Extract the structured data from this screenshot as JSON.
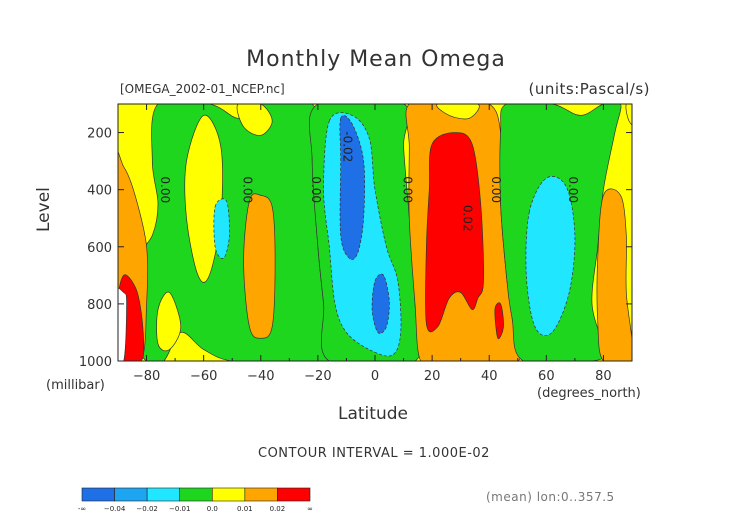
{
  "header": {
    "title": "Monthly Mean Omega",
    "file_label": "[OMEGA_2002-01_NCEP.nc]",
    "units_label": "(units:Pascal/s)"
  },
  "axes": {
    "ylabel": "Level",
    "yunit": "(millibar)",
    "xlabel": "Latitude",
    "xunit": "(degrees_north)"
  },
  "footer": {
    "contour_interval": "CONTOUR INTERVAL = 1.000E-02",
    "mean_note": "(mean) lon:0..357.5"
  },
  "chart_data": {
    "type": "heatmap",
    "title": "Monthly Mean Omega",
    "xlabel": "Latitude",
    "ylabel": "Level",
    "x_unit": "(degrees_north)",
    "y_unit": "(millibar)",
    "xlim": [
      -90,
      90
    ],
    "ylim": [
      1000,
      100
    ],
    "y_inverted": true,
    "x_ticks": [
      -80,
      -60,
      -40,
      -20,
      0,
      20,
      40,
      60,
      80
    ],
    "x_tick_labels": [
      "−80",
      "−60",
      "−40",
      "−20",
      "0",
      "20",
      "40",
      "60",
      "80"
    ],
    "y_ticks": [
      200,
      400,
      600,
      800,
      1000
    ],
    "y_tick_labels": [
      "200",
      "400",
      "600",
      "800",
      "1000"
    ],
    "contour_interval": 0.01,
    "contour_labels": [
      {
        "text": "0.00",
        "lat": -75,
        "level": 400
      },
      {
        "text": "0.00",
        "lat": -46,
        "level": 400
      },
      {
        "text": "0.00",
        "lat": -22,
        "level": 400
      },
      {
        "text": "-0.02",
        "lat": -11,
        "level": 250
      },
      {
        "text": "0.00",
        "lat": 10,
        "level": 400
      },
      {
        "text": "0.02",
        "lat": 31,
        "level": 500
      },
      {
        "text": "0.00",
        "lat": 41,
        "level": 400
      },
      {
        "text": "0.00",
        "lat": 68,
        "level": 400
      }
    ],
    "colorbar": {
      "colors": [
        "#1f6fe6",
        "#1ea5f2",
        "#21e6ff",
        "#1fd61f",
        "#ffff00",
        "#ffa500",
        "#ff0000"
      ],
      "labels": [
        "-∞",
        "−0.04",
        "−0.02",
        "−0.01",
        "0.0",
        "0.01",
        "0.02",
        "∞"
      ]
    },
    "regions": [
      {
        "value_range": "0.00..0.01",
        "color": "yellow",
        "lat": [
          -90,
          90
        ],
        "level": [
          100,
          1000
        ]
      },
      {
        "value_range": "-0.01..0.00",
        "color": "green",
        "lat": [
          -75,
          -22
        ],
        "level": [
          100,
          1000
        ]
      },
      {
        "value_range": "-0.02..-0.01",
        "color": "cyan",
        "lat": [
          -18,
          8
        ],
        "level": [
          150,
          940
        ]
      },
      {
        "value_range": "-0.04..-0.02",
        "color": "blue",
        "lat": [
          -12,
          -4
        ],
        "level": [
          150,
          600
        ]
      },
      {
        "value_range": "0.01..0.02",
        "color": "orange",
        "lat": [
          12,
          44
        ],
        "level": [
          100,
          1000
        ]
      },
      {
        "value_range": "> 0.02",
        "color": "red",
        "lat": [
          18,
          37
        ],
        "level": [
          200,
          880
        ]
      },
      {
        "value_range": "-0.01..0.00",
        "color": "green",
        "lat": [
          40,
          78
        ],
        "level": [
          100,
          1000
        ]
      },
      {
        "value_range": "-0.02..-0.01",
        "color": "cyan",
        "lat": [
          53,
          70
        ],
        "level": [
          380,
          900
        ]
      },
      {
        "value_range": "0.01..0.02",
        "color": "orange",
        "lat": [
          -46,
          -36
        ],
        "level": [
          420,
          930
        ]
      },
      {
        "value_range": "0.01..0.02",
        "color": "orange",
        "lat": [
          78,
          88
        ],
        "level": [
          420,
          1000
        ]
      },
      {
        "value_range": "> 0.02",
        "color": "red",
        "lat": [
          -88,
          -80
        ],
        "level": [
          700,
          1000
        ]
      }
    ]
  }
}
